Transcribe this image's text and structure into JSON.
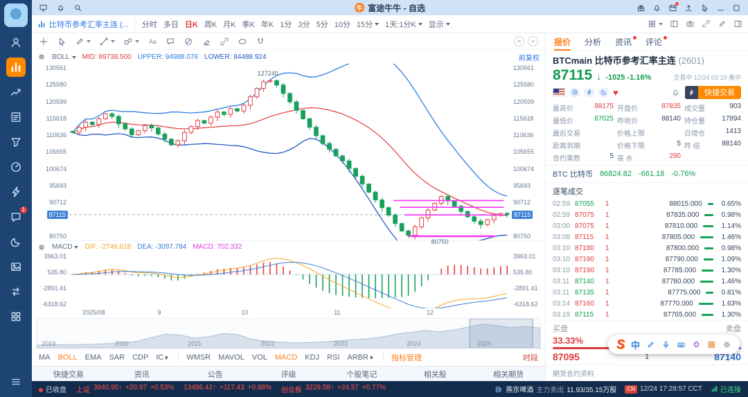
{
  "titlebar": {
    "title": "富途牛牛 - 自选",
    "logo_glyph": "牛",
    "left_icons": [
      {
        "icon": "monitor-icon"
      },
      {
        "icon": "bell-icon"
      },
      {
        "icon": "search-icon"
      }
    ],
    "right_icons": [
      {
        "icon": "gift-icon"
      },
      {
        "icon": "bell-icon"
      },
      {
        "icon": "calendar-icon",
        "dot": true
      },
      {
        "icon": "upload-icon"
      },
      {
        "icon": "cursor-icon"
      },
      {
        "icon": "minimize-icon"
      },
      {
        "icon": "window-icon"
      }
    ]
  },
  "sidebar": {
    "items": [
      {
        "icon": "user-icon"
      },
      {
        "icon": "market-icon",
        "selected": true
      },
      {
        "icon": "trend-icon"
      },
      {
        "icon": "note-icon"
      },
      {
        "icon": "filter-icon"
      },
      {
        "icon": "gauge-icon"
      },
      {
        "icon": "futu-logo-icon"
      },
      {
        "icon": "chat-icon",
        "badge": "1"
      },
      {
        "icon": "moon-icon"
      },
      {
        "icon": "image-icon"
      },
      {
        "icon": "transfer-icon"
      },
      {
        "icon": "grid-icon"
      }
    ]
  },
  "toolbar": {
    "symbol_tab": "比特币参考汇率主连 (...",
    "periods": [
      {
        "label": "分时"
      },
      {
        "label": "多日"
      },
      {
        "label": "日K",
        "selected": true
      },
      {
        "label": "周K"
      },
      {
        "label": "月K"
      },
      {
        "label": "季K"
      },
      {
        "label": "年K"
      },
      {
        "label": "1分"
      },
      {
        "label": "3分"
      },
      {
        "label": "5分"
      },
      {
        "label": "10分"
      },
      {
        "label": "15分",
        "caret": true
      },
      {
        "label": "1天:1分K",
        "caret": true
      },
      {
        "label": "显示",
        "caret": true
      }
    ],
    "right_icons": [
      {
        "icon": "grid-icon",
        "caret": true
      },
      {
        "icon": "layout-icon"
      },
      {
        "icon": "camera-icon"
      },
      {
        "icon": "link-icon"
      },
      {
        "icon": "pencil-icon"
      },
      {
        "icon": "panel-icon"
      }
    ]
  },
  "chart": {
    "draw_tools": [
      {
        "icon": "crosshair-icon"
      },
      {
        "icon": "cursor-icon"
      },
      {
        "icon": "pencil-icon",
        "caret": true
      },
      {
        "icon": "trendline-icon",
        "caret": true
      },
      {
        "icon": "shapes-icon",
        "caret": true
      },
      {
        "icon": "text-tool-icon"
      },
      {
        "icon": "comment-icon"
      },
      {
        "icon": "forbid-icon"
      },
      {
        "icon": "eraser-icon"
      },
      {
        "icon": "link-icon"
      },
      {
        "icon": "ellipse-icon"
      },
      {
        "icon": "magnet-icon"
      }
    ],
    "boll_bar": {
      "indicator": "BOLL",
      "mid": "MID: 89738.500",
      "upper": "UPPER: 94988.076",
      "lower": "LOWER: 84488.924",
      "adjust": "前复权"
    },
    "y_axis": [
      "130561",
      "125580",
      "120599",
      "115618",
      "110636",
      "105655",
      "100674",
      "95693",
      "90712",
      "80750"
    ],
    "current_price": "87115",
    "macd_bar": {
      "indicator": "MACD",
      "dif": "DIF: -2746.618",
      "dea": "DEA: -3097.784",
      "macd": "MACD: 702.332"
    },
    "macd_axis": [
      "3963.01",
      "535.80",
      "-2891.41",
      "-6318.62"
    ],
    "x_axis": [
      {
        "label": "2025/08",
        "x": 0.03
      },
      {
        "label": "9",
        "x": 0.2
      },
      {
        "label": "10",
        "x": 0.39
      },
      {
        "label": "11",
        "x": 0.6
      },
      {
        "label": "12",
        "x": 0.81
      }
    ],
    "nav_years": [
      {
        "label": "2019",
        "x": 0.01
      },
      {
        "label": "2020",
        "x": 0.155
      },
      {
        "label": "2021",
        "x": 0.3
      },
      {
        "label": "2022",
        "x": 0.445
      },
      {
        "label": "2023",
        "x": 0.59
      },
      {
        "label": "2024",
        "x": 0.735
      },
      {
        "label": "2025",
        "x": 0.875
      }
    ],
    "indicator_tabs_main": [
      {
        "label": "MA"
      },
      {
        "label": "BOLL",
        "selected": true
      },
      {
        "label": "EMA"
      },
      {
        "label": "SAR"
      },
      {
        "label": "CDP"
      },
      {
        "label": "IC",
        "arrow": true
      }
    ],
    "indicator_tabs_sub": [
      {
        "label": "WMSR"
      },
      {
        "label": "MAVOL"
      },
      {
        "label": "VOL"
      },
      {
        "label": "MACD",
        "selected": true
      },
      {
        "label": "KDJ"
      },
      {
        "label": "RSI"
      },
      {
        "label": "ARBR",
        "arrow": true
      }
    ],
    "indicator_manage": "指标管理",
    "session": "时段"
  },
  "chart_data": {
    "type": "candlestick+macd",
    "symbol": "BTCmain",
    "timeframe": "日K",
    "price_range": [
      79500,
      131800
    ],
    "last": 87115,
    "closes": [
      111500,
      113000,
      114500,
      113800,
      115500,
      117000,
      116200,
      114000,
      112500,
      110800,
      112000,
      113500,
      112800,
      111000,
      109500,
      107800,
      109000,
      111500,
      113200,
      115000,
      114200,
      116000,
      117500,
      116800,
      118500,
      117800,
      119500,
      122000,
      124500,
      126500,
      126800,
      125500,
      123000,
      120500,
      118000,
      115500,
      113000,
      110500,
      108200,
      106500,
      104500,
      103000,
      100800,
      98500,
      96200,
      93800,
      91500,
      89200,
      87000,
      84500,
      82300,
      81000,
      83500,
      86200,
      88500,
      90500,
      92500,
      91200,
      89600,
      88100,
      86500,
      85200,
      84200,
      85600,
      86900,
      87500,
      87115
    ],
    "boll": {
      "period": 20,
      "mid_last": 89738.5,
      "upper_last": 94988.076,
      "lower_last": 84488.924
    },
    "macd_range": [
      -7200,
      4600
    ],
    "macd_last": {
      "dif": -2746.618,
      "dea": -3097.784,
      "macd": 702.332
    },
    "annotations": [
      {
        "label": "127240",
        "price": 127240,
        "x": 0.45,
        "pos": "above"
      },
      {
        "label": "80750",
        "price": 80750,
        "x": 0.84,
        "pos": "below"
      }
    ],
    "trend_lines": [
      {
        "price": 91300,
        "x1": 0.735,
        "x2": 0.985
      },
      {
        "price": 89300,
        "x1": 0.75,
        "x2": 0.985
      },
      {
        "price": 87050,
        "x1": 0.76,
        "x2": 0.985
      },
      {
        "price": 80750,
        "x1": 0.77,
        "x2": 0.965,
        "thick": true
      }
    ],
    "navigator": {
      "values": [
        0.06,
        0.07,
        0.08,
        0.08,
        0.09,
        0.12,
        0.15,
        0.22,
        0.38,
        0.52,
        0.48,
        0.35,
        0.42,
        0.55,
        0.5,
        0.3,
        0.22,
        0.18,
        0.15,
        0.17,
        0.2,
        0.24,
        0.28,
        0.33,
        0.4,
        0.52,
        0.6,
        0.68,
        0.62,
        0.7,
        0.82,
        0.95,
        0.88,
        0.8,
        0.85,
        0.78
      ],
      "select": [
        0.86,
        0.985
      ]
    },
    "colors": {
      "up": "#e23b3b",
      "down": "#18a05c",
      "boll_mid": "#e23b3b",
      "boll_upper": "#2b7de0",
      "boll_lower": "#2457c5",
      "drawing": "#f531f5",
      "last_price_line": "#9fb0c4",
      "macd_dif": "#f5a623",
      "macd_dea": "#3b7fd4"
    }
  },
  "quote": {
    "tabs": [
      {
        "label": "报价",
        "selected": true
      },
      {
        "label": "分析"
      },
      {
        "label": "资讯",
        "dot": true
      },
      {
        "label": "评论",
        "dot": true
      }
    ],
    "code": "BTCmain",
    "name": "比特币参考汇率主连",
    "contract": "(2601)",
    "price": "87115",
    "arrow": "↓",
    "change": "-1025",
    "change_pct": "-1.16%",
    "session_status": "交易中 12/24 03:19 美中",
    "flag_icons": [
      "clock-icon",
      "bolt-icon",
      "moon-icon"
    ],
    "quick_trade": "快捷交易",
    "fields": [
      {
        "label": "最高价",
        "value": "88175",
        "color": "red"
      },
      {
        "label": "开盘价",
        "value": "87835",
        "color": "red"
      },
      {
        "label": "成交量",
        "value": "903",
        "color": "dark"
      },
      {
        "label": "最低价",
        "value": "87025",
        "color": "green"
      },
      {
        "label": "昨收价",
        "value": "88140",
        "color": "dark"
      },
      {
        "label": "持仓量",
        "value": "17894",
        "color": "dark"
      },
      {
        "label": "最后交易",
        "value": "",
        "color": "dark"
      },
      {
        "label": "价格上限",
        "value": "",
        "color": "dark"
      },
      {
        "label": "日增仓",
        "value": "1413",
        "color": "dark"
      },
      {
        "label": "距离到期",
        "value": "",
        "color": "dark"
      },
      {
        "label": "价格下限",
        "value": "5",
        "color": "dark"
      },
      {
        "label": "昨 结",
        "value": "88140",
        "color": "dark"
      },
      {
        "label": "合约乘数",
        "value": "5",
        "color": "dark"
      },
      {
        "label": "高 水",
        "value": "290",
        "color": "red"
      }
    ],
    "underlying": {
      "code": "BTC",
      "name": "比特币",
      "price": "86824.82",
      "change": "-661.18",
      "pct": "-0.76%"
    },
    "ticks_title": "逐笔成交",
    "ticks": [
      {
        "time": "02:59",
        "price": "87055",
        "dir": "down",
        "qty": "1",
        "level": "88015.000",
        "pct": "0.65%"
      },
      {
        "time": "02:59",
        "price": "87075",
        "dir": "up",
        "qty": "1",
        "level": "87835.000",
        "pct": "0.98%"
      },
      {
        "time": "03:00",
        "price": "87075",
        "dir": "up",
        "qty": "1",
        "level": "87810.000",
        "pct": "1.14%"
      },
      {
        "time": "03:08",
        "price": "87115",
        "dir": "up",
        "qty": "1",
        "level": "87805.000",
        "pct": "1.46%"
      },
      {
        "time": "03:10",
        "price": "87180",
        "dir": "up",
        "qty": "1",
        "level": "87800.000",
        "pct": "0.98%"
      },
      {
        "time": "03:10",
        "price": "87190",
        "dir": "up",
        "qty": "1",
        "level": "87790.000",
        "pct": "1.09%"
      },
      {
        "time": "03:10",
        "price": "87190",
        "dir": "up",
        "qty": "1",
        "level": "87785.000",
        "pct": "1.30%"
      },
      {
        "time": "03:11",
        "price": "87140",
        "dir": "down",
        "qty": "1",
        "level": "87780.000",
        "pct": "1.46%"
      },
      {
        "time": "03:11",
        "price": "87135",
        "dir": "down",
        "qty": "1",
        "level": "87775.000",
        "pct": "0.81%"
      },
      {
        "time": "03:14",
        "price": "87160",
        "dir": "up",
        "qty": "1",
        "level": "87770.000",
        "pct": "1.63%"
      },
      {
        "time": "03:19",
        "price": "87115",
        "dir": "down",
        "qty": "1",
        "level": "87765.000",
        "pct": "1.30%"
      }
    ],
    "depth": {
      "buy_label": "买盘",
      "sell_label": "卖盘",
      "ratio": "33.33%",
      "ratio_val": 33.33,
      "bid": "87095",
      "qty": "1",
      "ask": "87140"
    },
    "footer": "期货合约资料"
  },
  "bottom_tabs": [
    {
      "label": "快捷交易"
    },
    {
      "label": "资讯"
    },
    {
      "label": "公告"
    },
    {
      "label": "评级"
    },
    {
      "label": "个股笔记"
    },
    {
      "label": "相关股"
    },
    {
      "label": "相关期货"
    }
  ],
  "ime": {
    "logo": "S",
    "lang": "中",
    "icons": [
      {
        "icon": "pencil-icon",
        "color": "#3b8de0"
      },
      {
        "icon": "mic-icon",
        "color": "#3b8de0"
      },
      {
        "icon": "keyboard-icon",
        "color": "#3b8de0"
      },
      {
        "icon": "puzzle-icon",
        "color": "#9b59b6"
      },
      {
        "icon": "grid-icon",
        "color": "#e67e22"
      },
      {
        "icon": "gear-icon",
        "color": "#7f8c9b"
      }
    ]
  },
  "statusbar": {
    "market_status": "已收盘",
    "indices": [
      {
        "label": "上证",
        "value": "3940.95↑",
        "change": "+20.97",
        "pct": "+0.53%"
      },
      {
        "label": "",
        "value": "13486.42↑",
        "change": "+117.43",
        "pct": "+0.88%"
      },
      {
        "label": "创业板",
        "value": "3229.58↑",
        "change": "+24.57",
        "pct": "+0.77%"
      }
    ],
    "stock": {
      "name": "燕京啤酒",
      "action": "主力卖出",
      "amount": "11.93/35.15万股"
    },
    "region": "CN",
    "clock": "12/24 17:28:57 CCT",
    "connection": "已连接"
  }
}
